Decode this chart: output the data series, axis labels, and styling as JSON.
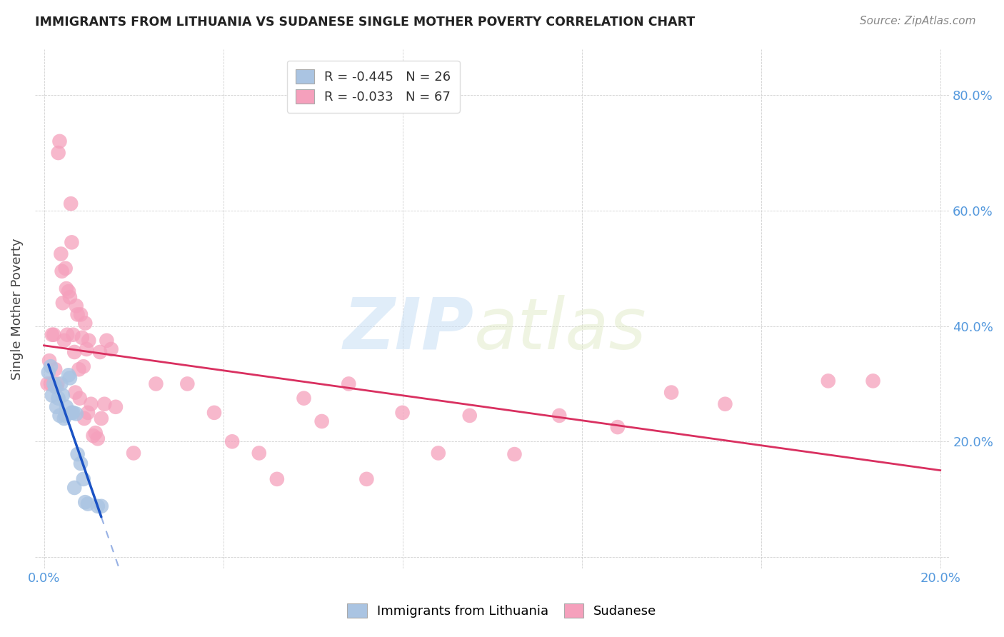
{
  "title": "IMMIGRANTS FROM LITHUANIA VS SUDANESE SINGLE MOTHER POVERTY CORRELATION CHART",
  "source": "Source: ZipAtlas.com",
  "ylabel_label": "Single Mother Poverty",
  "legend_R_blue": "-0.445",
  "legend_N_blue": "26",
  "legend_R_pink": "-0.033",
  "legend_N_pink": "67",
  "legend_label_blue": "Immigrants from Lithuania",
  "legend_label_pink": "Sudanese",
  "blue_color": "#aac4e2",
  "pink_color": "#f5a0bc",
  "blue_line_color": "#1a52c4",
  "pink_line_color": "#d93060",
  "watermark_zip": "ZIP",
  "watermark_atlas": "atlas",
  "blue_points_x": [
    0.001,
    0.0015,
    0.0018,
    0.0022,
    0.0025,
    0.0028,
    0.0032,
    0.0035,
    0.0038,
    0.0042,
    0.0045,
    0.0048,
    0.005,
    0.0055,
    0.0058,
    0.0062,
    0.0065,
    0.0068,
    0.0072,
    0.0075,
    0.0082,
    0.0088,
    0.0092,
    0.0098,
    0.012,
    0.0128
  ],
  "blue_points_y": [
    0.32,
    0.33,
    0.28,
    0.3,
    0.295,
    0.26,
    0.275,
    0.245,
    0.3,
    0.28,
    0.24,
    0.245,
    0.26,
    0.315,
    0.31,
    0.25,
    0.25,
    0.12,
    0.248,
    0.178,
    0.162,
    0.135,
    0.095,
    0.092,
    0.088,
    0.088
  ],
  "pink_points_x": [
    0.0008,
    0.0012,
    0.0015,
    0.0018,
    0.0022,
    0.0025,
    0.0028,
    0.003,
    0.0032,
    0.0035,
    0.0038,
    0.004,
    0.0042,
    0.0045,
    0.0048,
    0.005,
    0.0052,
    0.0055,
    0.0058,
    0.006,
    0.0062,
    0.0065,
    0.0068,
    0.007,
    0.0072,
    0.0075,
    0.0078,
    0.008,
    0.0082,
    0.0085,
    0.0088,
    0.009,
    0.0092,
    0.0095,
    0.0098,
    0.01,
    0.0105,
    0.011,
    0.0115,
    0.012,
    0.0125,
    0.0128,
    0.0135,
    0.014,
    0.015,
    0.016,
    0.02,
    0.025,
    0.032,
    0.038,
    0.042,
    0.048,
    0.052,
    0.058,
    0.062,
    0.068,
    0.072,
    0.08,
    0.088,
    0.095,
    0.105,
    0.115,
    0.128,
    0.14,
    0.152,
    0.175,
    0.185
  ],
  "pink_points_y": [
    0.3,
    0.34,
    0.3,
    0.385,
    0.385,
    0.325,
    0.295,
    0.3,
    0.7,
    0.72,
    0.525,
    0.495,
    0.44,
    0.375,
    0.5,
    0.465,
    0.385,
    0.46,
    0.45,
    0.612,
    0.545,
    0.385,
    0.355,
    0.285,
    0.435,
    0.42,
    0.325,
    0.275,
    0.42,
    0.38,
    0.33,
    0.24,
    0.405,
    0.36,
    0.25,
    0.375,
    0.265,
    0.21,
    0.215,
    0.205,
    0.355,
    0.24,
    0.265,
    0.375,
    0.36,
    0.26,
    0.18,
    0.3,
    0.3,
    0.25,
    0.2,
    0.18,
    0.135,
    0.275,
    0.235,
    0.3,
    0.135,
    0.25,
    0.18,
    0.245,
    0.178,
    0.245,
    0.225,
    0.285,
    0.265,
    0.305,
    0.305
  ]
}
